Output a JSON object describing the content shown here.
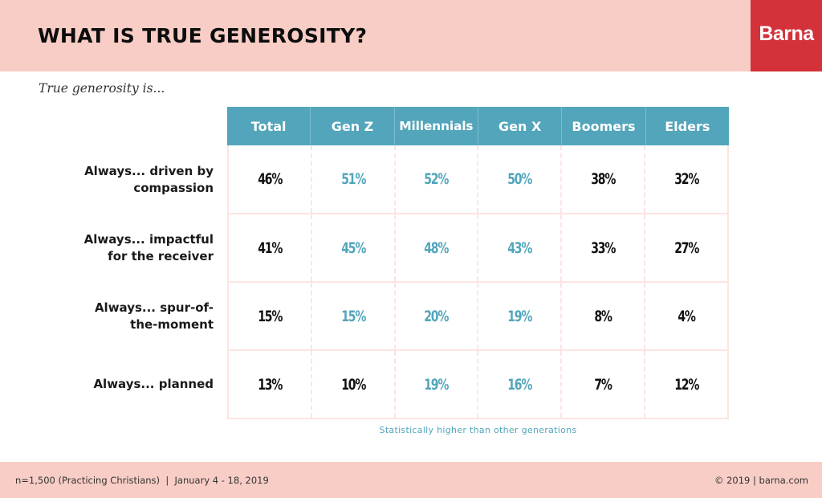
{
  "header": {
    "title": "WHAT IS TRUE GENEROSITY?",
    "brand": "Barna",
    "subtitle": "True generosity is..."
  },
  "table": {
    "columns": [
      "Total",
      "Gen Z",
      "Millennials",
      "Gen X",
      "Boomers",
      "Elders"
    ],
    "rows": [
      {
        "label": "Always... driven by compassion",
        "label_lines": [
          "Always... driven by",
          "compassion"
        ],
        "cells": [
          "46%",
          "51%",
          "52%",
          "50%",
          "38%",
          "32%"
        ],
        "highlight": [
          false,
          true,
          true,
          true,
          false,
          false
        ]
      },
      {
        "label": "Always... impactful for the receiver",
        "label_lines": [
          "Always... impactful",
          "for the receiver"
        ],
        "cells": [
          "41%",
          "45%",
          "48%",
          "43%",
          "33%",
          "27%"
        ],
        "highlight": [
          false,
          true,
          true,
          true,
          false,
          false
        ]
      },
      {
        "label": "Always... spur-of-the-moment",
        "label_lines": [
          "Always... spur-of-",
          "the-moment"
        ],
        "cells": [
          "15%",
          "15%",
          "20%",
          "19%",
          "8%",
          "4%"
        ],
        "highlight": [
          false,
          true,
          true,
          true,
          false,
          false
        ]
      },
      {
        "label": "Always... planned",
        "label_lines": [
          "Always... planned",
          ""
        ],
        "cells": [
          "13%",
          "10%",
          "19%",
          "16%",
          "7%",
          "12%"
        ],
        "highlight": [
          false,
          false,
          true,
          true,
          false,
          false
        ]
      }
    ],
    "note": "Statistically higher than other generations"
  },
  "footer": {
    "left": "n=1,500 (Practicing Christians)  |  January 4 - 18, 2019",
    "right": "© 2019 | barna.com"
  },
  "colors": {
    "band": "#f8cdc5",
    "brand": "#d3323a",
    "header_fill": "#52a5bb",
    "highlight_text": "#52a5bb",
    "grid": "#fde4e0"
  },
  "chart_data": {
    "type": "table",
    "title": "WHAT IS TRUE GENEROSITY?",
    "subtitle": "True generosity is...",
    "categories": [
      "Total",
      "Gen Z",
      "Millennials",
      "Gen X",
      "Boomers",
      "Elders"
    ],
    "series": [
      {
        "name": "Always... driven by compassion",
        "values": [
          46,
          51,
          52,
          50,
          38,
          32
        ]
      },
      {
        "name": "Always... impactful for the receiver",
        "values": [
          41,
          45,
          48,
          43,
          33,
          27
        ]
      },
      {
        "name": "Always... spur-of-the-moment",
        "values": [
          15,
          15,
          20,
          19,
          8,
          4
        ]
      },
      {
        "name": "Always... planned",
        "values": [
          13,
          10,
          19,
          16,
          7,
          12
        ]
      }
    ],
    "unit": "%",
    "highlighted_cells_note": "Statistically higher than other generations",
    "highlighted": [
      [
        false,
        true,
        true,
        true,
        false,
        false
      ],
      [
        false,
        true,
        true,
        true,
        false,
        false
      ],
      [
        false,
        true,
        true,
        true,
        false,
        false
      ],
      [
        false,
        false,
        true,
        true,
        false,
        false
      ]
    ],
    "source": "n=1,500 (Practicing Christians) | January 4 - 18, 2019"
  }
}
